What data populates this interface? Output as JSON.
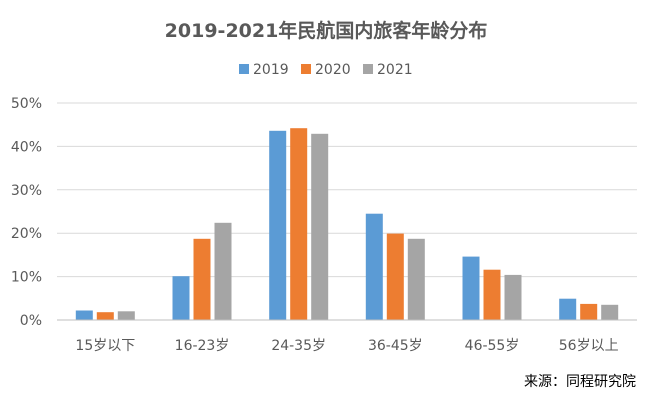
{
  "chart_data": {
    "type": "bar",
    "title": "2019-2021年民航国内旅客年龄分布",
    "categories": [
      "15岁以下",
      "16-23岁",
      "24-35岁",
      "36-45岁",
      "46-55岁",
      "56岁以上"
    ],
    "series": [
      {
        "name": "2019",
        "color": "#5b9bd5",
        "values": [
          2.2,
          10.1,
          43.6,
          24.5,
          14.6,
          4.9
        ]
      },
      {
        "name": "2020",
        "color": "#ed7d31",
        "values": [
          1.8,
          18.7,
          44.2,
          19.9,
          11.6,
          3.7
        ]
      },
      {
        "name": "2021",
        "color": "#a5a5a5",
        "values": [
          2.0,
          22.4,
          42.9,
          18.7,
          10.4,
          3.5
        ]
      }
    ],
    "yticks": [
      "0%",
      "10%",
      "20%",
      "30%",
      "40%",
      "50%"
    ],
    "ylim": [
      0,
      50
    ],
    "grid": true,
    "legend_position": "top-center"
  },
  "source": "来源：同程研究院"
}
